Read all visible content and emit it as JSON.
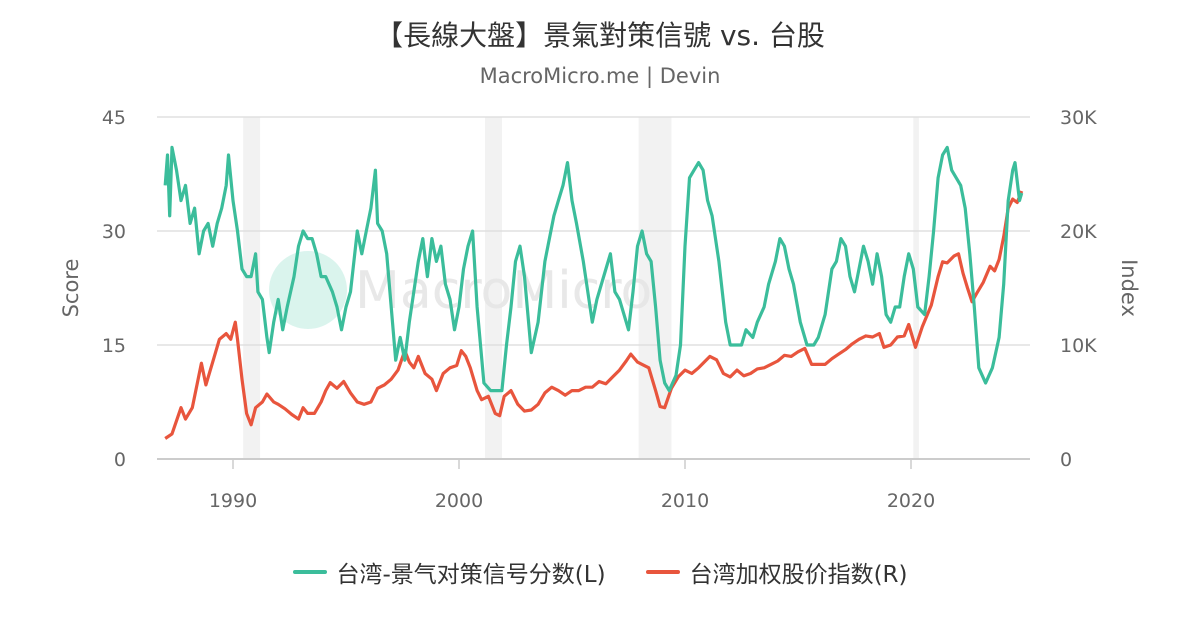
{
  "title": "【長線大盤】景氣對策信號 vs. 台股",
  "subtitle": "MacroMicro.me | Devin",
  "watermark": "MacroMicro",
  "colors": {
    "score": "#3bbd9b",
    "index": "#e8553d",
    "recession": "#f2f2f2",
    "grid": "#e0e0e0"
  },
  "chart_data": {
    "type": "line",
    "title": "【長線大盤】景氣對策信號 vs. 台股",
    "grid": true,
    "legend_position": "bottom",
    "x_ticks": [
      "1990",
      "2000",
      "2010",
      "2020"
    ],
    "x_range": [
      1986.7,
      2025.3
    ],
    "y_left": {
      "label": "Score",
      "range": [
        0,
        45
      ],
      "ticks": [
        "0",
        "15",
        "30",
        "45"
      ],
      "tick_values": [
        0,
        15,
        30,
        45
      ]
    },
    "y_right": {
      "label": "Index",
      "range": [
        0,
        30000
      ],
      "ticks": [
        "0",
        "10K",
        "20K",
        "30K"
      ],
      "tick_values": [
        0,
        10000,
        20000,
        30000
      ]
    },
    "recessions": [
      [
        1990.45,
        1991.2
      ],
      [
        2001.15,
        2001.9
      ],
      [
        2007.95,
        2009.4
      ],
      [
        2020.1,
        2020.35
      ]
    ],
    "series": [
      {
        "name": "台湾-景气对策信号分数(L)",
        "axis": "left",
        "x": [
          1987.0,
          1987.1,
          1987.2,
          1987.3,
          1987.5,
          1987.7,
          1987.9,
          1988.1,
          1988.3,
          1988.5,
          1988.7,
          1988.9,
          1989.1,
          1989.3,
          1989.5,
          1989.7,
          1989.8,
          1990.0,
          1990.2,
          1990.4,
          1990.6,
          1990.8,
          1991.0,
          1991.1,
          1991.3,
          1991.5,
          1991.6,
          1991.8,
          1992.0,
          1992.2,
          1992.4,
          1992.7,
          1992.9,
          1993.1,
          1993.3,
          1993.5,
          1993.7,
          1993.9,
          1994.1,
          1994.4,
          1994.6,
          1994.8,
          1995.0,
          1995.2,
          1995.5,
          1995.7,
          1995.9,
          1996.1,
          1996.3,
          1996.4,
          1996.6,
          1996.8,
          1997.0,
          1997.2,
          1997.4,
          1997.6,
          1997.8,
          1998.0,
          1998.2,
          1998.4,
          1998.6,
          1998.8,
          1999.0,
          1999.2,
          1999.4,
          1999.6,
          1999.8,
          2000.0,
          2000.2,
          2000.4,
          2000.6,
          2000.8,
          2001.1,
          2001.4,
          2001.7,
          2001.9,
          2002.1,
          2002.3,
          2002.5,
          2002.7,
          2002.9,
          2003.2,
          2003.5,
          2003.8,
          2004.0,
          2004.2,
          2004.4,
          2004.6,
          2004.8,
          2005.0,
          2005.2,
          2005.5,
          2005.7,
          2005.9,
          2006.1,
          2006.3,
          2006.5,
          2006.7,
          2006.9,
          2007.1,
          2007.3,
          2007.5,
          2007.7,
          2007.9,
          2008.1,
          2008.3,
          2008.5,
          2008.7,
          2008.9,
          2009.1,
          2009.3,
          2009.6,
          2009.8,
          2010.0,
          2010.2,
          2010.4,
          2010.6,
          2010.8,
          2011.0,
          2011.2,
          2011.5,
          2011.8,
          2012.0,
          2012.2,
          2012.5,
          2012.7,
          2013.0,
          2013.2,
          2013.5,
          2013.7,
          2014.0,
          2014.2,
          2014.4,
          2014.6,
          2014.8,
          2015.1,
          2015.4,
          2015.7,
          2015.9,
          2016.2,
          2016.5,
          2016.7,
          2016.9,
          2017.1,
          2017.3,
          2017.5,
          2017.7,
          2017.9,
          2018.1,
          2018.3,
          2018.5,
          2018.7,
          2018.9,
          2019.1,
          2019.3,
          2019.5,
          2019.7,
          2019.9,
          2020.1,
          2020.3,
          2020.6,
          2020.8,
          2021.0,
          2021.2,
          2021.4,
          2021.6,
          2021.8,
          2022.0,
          2022.2,
          2022.4,
          2022.6,
          2022.8,
          2023.0,
          2023.3,
          2023.6,
          2023.9,
          2024.1,
          2024.3,
          2024.5,
          2024.6,
          2024.8,
          2024.9
        ],
        "values": [
          36,
          40,
          32,
          41,
          38,
          34,
          36,
          31,
          33,
          27,
          30,
          31,
          28,
          31,
          33,
          36,
          40,
          34,
          30,
          25,
          24,
          24,
          27,
          22,
          21,
          16,
          14,
          18,
          21,
          17,
          20,
          24,
          28,
          30,
          29,
          29,
          27,
          24,
          24,
          22,
          20,
          17,
          20,
          22,
          30,
          27,
          30,
          33,
          38,
          31,
          30,
          27,
          20,
          13,
          16,
          13,
          18,
          22,
          26,
          29,
          24,
          29,
          26,
          28,
          23,
          21,
          17,
          20,
          25,
          28,
          30,
          20,
          10,
          9,
          9,
          9,
          15,
          20,
          26,
          28,
          24,
          14,
          18,
          26,
          29,
          32,
          34,
          36,
          39,
          34,
          31,
          26,
          22,
          18,
          21,
          23,
          25,
          27,
          22,
          21,
          19,
          17,
          22,
          28,
          30,
          27,
          26,
          20,
          13,
          10,
          9,
          11,
          15,
          28,
          37,
          38,
          39,
          38,
          34,
          32,
          26,
          18,
          15,
          15,
          15,
          17,
          16,
          18,
          20,
          23,
          26,
          29,
          28,
          25,
          23,
          18,
          15,
          15,
          16,
          19,
          25,
          26,
          29,
          28,
          24,
          22,
          25,
          28,
          26,
          23,
          27,
          24,
          19,
          18,
          20,
          20,
          24,
          27,
          25,
          20,
          19,
          24,
          30,
          37,
          40,
          41,
          38,
          37,
          36,
          33,
          27,
          20,
          12,
          10,
          12,
          16,
          23,
          34,
          38,
          39,
          34,
          35
        ]
      },
      {
        "name": "台湾加权股价指数(R)",
        "axis": "right",
        "x": [
          1987.0,
          1987.3,
          1987.7,
          1987.9,
          1988.2,
          1988.6,
          1988.8,
          1989.1,
          1989.4,
          1989.7,
          1989.9,
          1990.1,
          1990.2,
          1990.4,
          1990.6,
          1990.8,
          1991.0,
          1991.3,
          1991.5,
          1991.8,
          1992.0,
          1992.3,
          1992.6,
          1992.9,
          1993.1,
          1993.3,
          1993.6,
          1993.9,
          1994.1,
          1994.3,
          1994.6,
          1994.9,
          1995.2,
          1995.5,
          1995.8,
          1996.1,
          1996.4,
          1996.7,
          1997.0,
          1997.3,
          1997.6,
          1997.8,
          1998.0,
          1998.2,
          1998.5,
          1998.8,
          1999.0,
          1999.3,
          1999.6,
          1999.9,
          2000.1,
          2000.3,
          2000.5,
          2000.8,
          2001.0,
          2001.3,
          2001.6,
          2001.8,
          2002.0,
          2002.3,
          2002.6,
          2002.9,
          2003.2,
          2003.5,
          2003.8,
          2004.1,
          2004.4,
          2004.7,
          2005.0,
          2005.3,
          2005.6,
          2005.9,
          2006.2,
          2006.5,
          2006.8,
          2007.1,
          2007.4,
          2007.6,
          2007.9,
          2008.1,
          2008.4,
          2008.7,
          2008.9,
          2009.1,
          2009.4,
          2009.7,
          2010.0,
          2010.3,
          2010.6,
          2010.9,
          2011.1,
          2011.4,
          2011.7,
          2012.0,
          2012.3,
          2012.6,
          2012.9,
          2013.2,
          2013.5,
          2013.8,
          2014.1,
          2014.4,
          2014.7,
          2015.0,
          2015.3,
          2015.6,
          2015.9,
          2016.2,
          2016.5,
          2016.8,
          2017.1,
          2017.4,
          2017.7,
          2018.0,
          2018.3,
          2018.6,
          2018.8,
          2019.1,
          2019.4,
          2019.7,
          2019.9,
          2020.2,
          2020.5,
          2020.9,
          2021.2,
          2021.4,
          2021.6,
          2021.9,
          2022.1,
          2022.3,
          2022.5,
          2022.7,
          2022.9,
          2023.2,
          2023.5,
          2023.7,
          2023.9,
          2024.1,
          2024.3,
          2024.5,
          2024.7,
          2024.9
        ],
        "values": [
          1800,
          2200,
          4500,
          3500,
          4500,
          8400,
          6500,
          8500,
          10500,
          11000,
          10500,
          12000,
          10500,
          7000,
          4000,
          3000,
          4500,
          5000,
          5700,
          5000,
          4800,
          4400,
          3900,
          3500,
          4500,
          4000,
          4000,
          5000,
          6000,
          6700,
          6200,
          6800,
          5800,
          5000,
          4800,
          5000,
          6200,
          6500,
          7000,
          7800,
          9500,
          8500,
          8000,
          9000,
          7500,
          7000,
          6000,
          7500,
          8000,
          8200,
          9500,
          9000,
          8000,
          6000,
          5200,
          5500,
          4000,
          3800,
          5500,
          6000,
          4800,
          4200,
          4300,
          4800,
          5800,
          6300,
          6000,
          5600,
          6000,
          6000,
          6300,
          6300,
          6800,
          6600,
          7200,
          7800,
          8600,
          9200,
          8500,
          8300,
          8000,
          6000,
          4600,
          4500,
          6200,
          7200,
          7800,
          7500,
          8000,
          8600,
          9000,
          8700,
          7500,
          7200,
          7800,
          7300,
          7500,
          7900,
          8000,
          8300,
          8600,
          9100,
          9000,
          9400,
          9700,
          8300,
          8300,
          8300,
          8800,
          9200,
          9600,
          10100,
          10500,
          10800,
          10700,
          11000,
          9800,
          10000,
          10700,
          10800,
          11800,
          9800,
          11600,
          13500,
          16000,
          17300,
          17200,
          17800,
          18000,
          16300,
          15000,
          13800,
          14500,
          15500,
          16900,
          16500,
          17500,
          19500,
          22000,
          22800,
          22500,
          23500
        ]
      }
    ]
  },
  "legend": {
    "score": "台湾-景气对策信号分数(L)",
    "index": "台湾加权股价指数(R)"
  }
}
